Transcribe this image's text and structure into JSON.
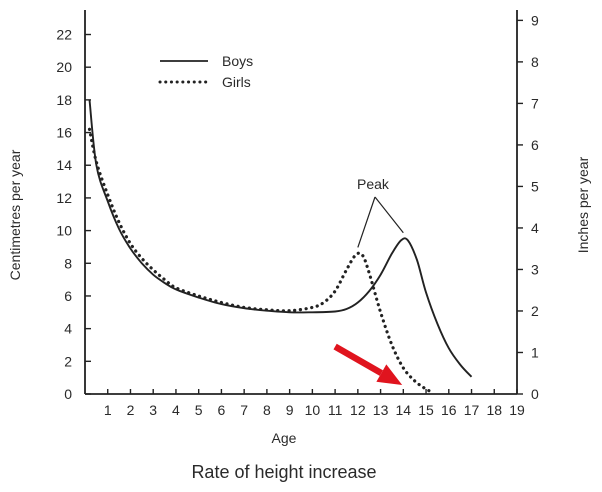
{
  "chart_data": {
    "type": "line",
    "caption": "Rate of height increase",
    "xlabel": "Age",
    "ylabel_left": "Centimetres per year",
    "ylabel_right": "Inches per year",
    "xlim": [
      0,
      19
    ],
    "ylim_left": [
      0,
      23.5
    ],
    "ylim_right": [
      0,
      9.25
    ],
    "x_ticks": [
      1,
      2,
      3,
      4,
      5,
      6,
      7,
      8,
      9,
      10,
      11,
      12,
      13,
      14,
      15,
      16,
      17,
      18,
      19
    ],
    "y_ticks_left": [
      0,
      2,
      4,
      6,
      8,
      10,
      12,
      14,
      16,
      18,
      20,
      22
    ],
    "y_ticks_right": [
      0,
      1,
      2,
      3,
      4,
      5,
      6,
      7,
      8,
      9
    ],
    "grid": false,
    "legend_position": "top-left",
    "series": [
      {
        "name": "Boys",
        "style": "solid",
        "color": "#222222",
        "points": [
          [
            0.2,
            18.0
          ],
          [
            0.5,
            14.0
          ],
          [
            1.0,
            11.8
          ],
          [
            1.5,
            10.1
          ],
          [
            2.0,
            8.9
          ],
          [
            2.5,
            8.0
          ],
          [
            3.0,
            7.3
          ],
          [
            3.5,
            6.8
          ],
          [
            4.0,
            6.4
          ],
          [
            5.0,
            5.9
          ],
          [
            6.0,
            5.5
          ],
          [
            7.0,
            5.25
          ],
          [
            8.0,
            5.1
          ],
          [
            9.0,
            5.0
          ],
          [
            10.0,
            5.0
          ],
          [
            11.0,
            5.05
          ],
          [
            11.5,
            5.2
          ],
          [
            12.0,
            5.6
          ],
          [
            12.5,
            6.3
          ],
          [
            13.0,
            7.3
          ],
          [
            13.5,
            8.6
          ],
          [
            13.9,
            9.4
          ],
          [
            14.2,
            9.4
          ],
          [
            14.6,
            8.2
          ],
          [
            15.0,
            6.2
          ],
          [
            15.5,
            4.3
          ],
          [
            16.0,
            2.8
          ],
          [
            16.5,
            1.8
          ],
          [
            17.0,
            1.05
          ]
        ]
      },
      {
        "name": "Girls",
        "style": "dotted",
        "color": "#222222",
        "points": [
          [
            0.2,
            16.2
          ],
          [
            0.5,
            14.2
          ],
          [
            1.0,
            12.2
          ],
          [
            1.5,
            10.5
          ],
          [
            2.0,
            9.2
          ],
          [
            2.5,
            8.3
          ],
          [
            3.0,
            7.6
          ],
          [
            3.5,
            7.0
          ],
          [
            4.0,
            6.5
          ],
          [
            5.0,
            6.0
          ],
          [
            6.0,
            5.6
          ],
          [
            7.0,
            5.3
          ],
          [
            8.0,
            5.15
          ],
          [
            9.0,
            5.1
          ],
          [
            10.0,
            5.3
          ],
          [
            10.5,
            5.6
          ],
          [
            11.0,
            6.3
          ],
          [
            11.5,
            7.6
          ],
          [
            11.9,
            8.5
          ],
          [
            12.2,
            8.5
          ],
          [
            12.5,
            7.4
          ],
          [
            13.0,
            5.0
          ],
          [
            13.5,
            3.0
          ],
          [
            14.0,
            1.6
          ],
          [
            14.5,
            0.8
          ],
          [
            15.0,
            0.3
          ],
          [
            15.3,
            0.1
          ]
        ]
      }
    ],
    "legend": [
      {
        "label": "Boys",
        "style": "solid"
      },
      {
        "label": "Girls",
        "style": "dotted"
      }
    ],
    "annotations": [
      {
        "text": "Peak",
        "targets": [
          [
            12.0,
            8.6
          ],
          [
            14.0,
            9.5
          ]
        ]
      }
    ],
    "arrow": {
      "color": "#e0141e",
      "from": [
        11.0,
        2.9
      ],
      "to": [
        13.95,
        0.55
      ]
    }
  }
}
